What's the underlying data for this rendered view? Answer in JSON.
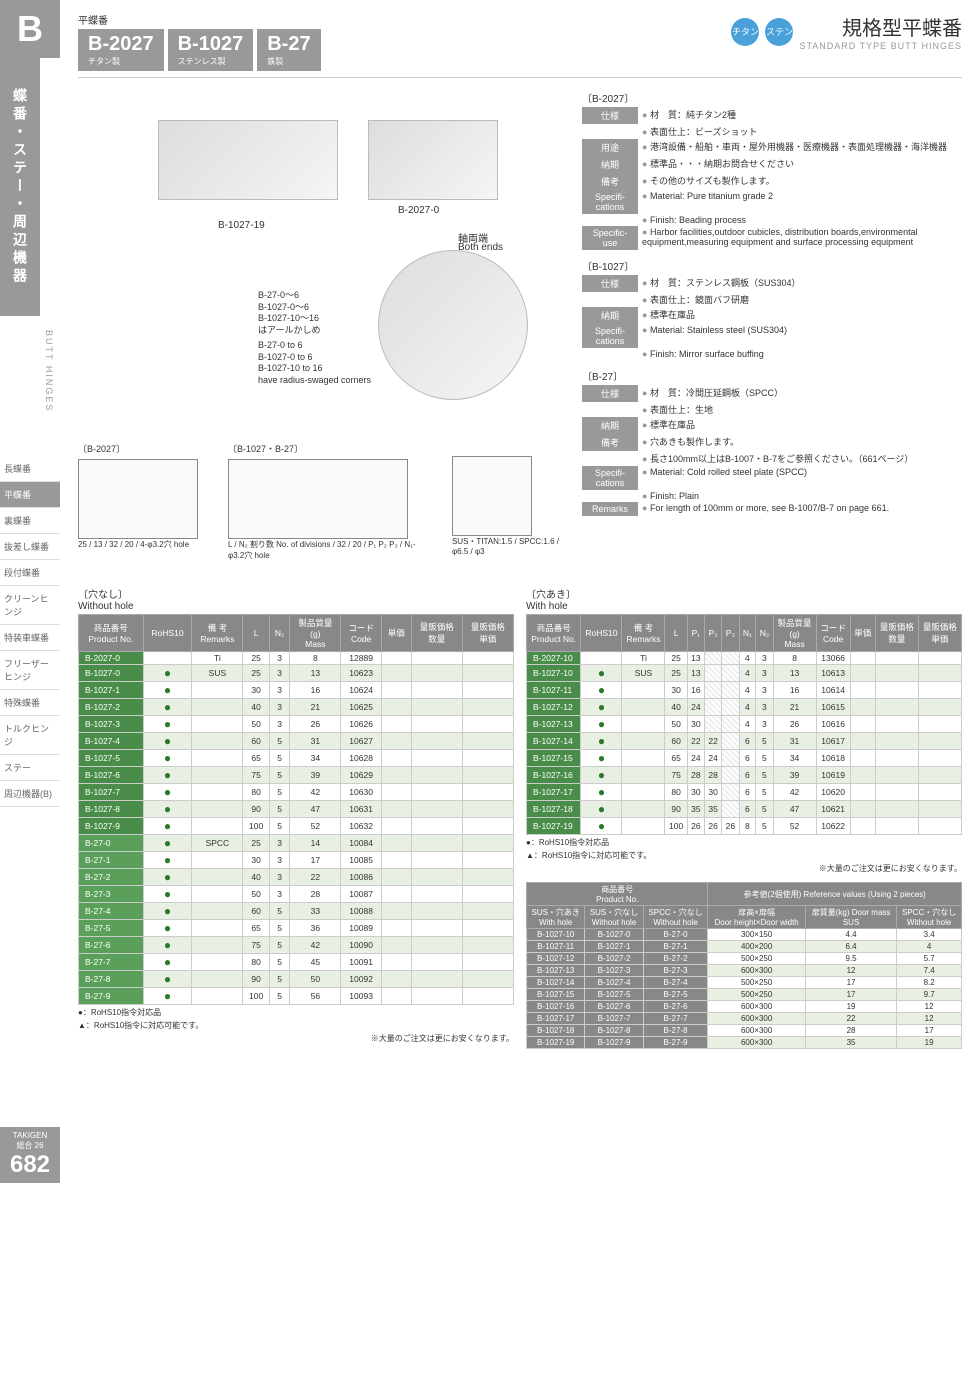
{
  "sidebar": {
    "letter": "B",
    "section_jp": "蝶番・ステー・周辺機器",
    "nav_en": "BUTT HINGES",
    "items": [
      "長蝶番",
      "平蝶番",
      "裏蝶番",
      "抜差し蝶番",
      "段付蝶番",
      "クリーンヒンジ",
      "特装車蝶番",
      "フリーザーヒンジ",
      "特殊蝶番",
      "トルクヒンジ",
      "ステー",
      "周辺機器(B)"
    ],
    "active_index": 1,
    "brand": "TAKIGEN",
    "catalog": "総合 26",
    "page": "682"
  },
  "header": {
    "small_title": "平蝶番",
    "codes": [
      {
        "code": "B-2027",
        "sub": "チタン製"
      },
      {
        "code": "B-1027",
        "sub": "ステンレス製"
      },
      {
        "code": "B-27",
        "sub": "鉄製"
      }
    ],
    "badges": [
      "チタン",
      "ステンレス"
    ],
    "title_jp": "規格型平蝶番",
    "title_en": "STANDARD TYPE BUTT HINGES"
  },
  "image_labels": {
    "img1": "B-1027-19",
    "img2": "B-2027-0",
    "both_ends_jp": "軸両端",
    "both_ends_en": "Both ends",
    "note_jp": "B-27-0～6\nB-1027-0～6\nB-1027-10～16\nはアールかしめ",
    "note_en": "B-27-0 to 6\nB-1027-0 to 6\nB-1027-10 to 16\nhave radius-swaged corners"
  },
  "diagrams": {
    "d1_label": "〔B-2027〕",
    "d2_label": "〔B-1027・B-27〕",
    "d1_dims": "25 / 13 / 32 / 20 / 4-φ3.2穴 hole",
    "d2_dims": "L / N₂ 割り数 No. of divisions / 32 / 20 / P₁ P₂ P₃ / N₁-φ3.2穴 hole",
    "d3_dims": "SUS・TITAN:1.5 / SPCC:1.6 / φ6.5 / φ3"
  },
  "specs": [
    {
      "header": "〔B-2027〕",
      "rows_jp": [
        {
          "label": "仕様",
          "text": "材　質：純チタン2種"
        },
        {
          "label": "",
          "text": "表面仕上：ビーズショット"
        },
        {
          "label": "用途",
          "text": "港湾設備・船舶・車両・屋外用機器・医療機器・表面処理機器・海洋機器"
        },
        {
          "label": "納期",
          "text": "標準品・・・納期お問合せください"
        },
        {
          "label": "備考",
          "text": "その他のサイズも製作します。"
        }
      ],
      "rows_en": [
        {
          "label": "Specifi-cations",
          "text": "Material: Pure titanium grade 2"
        },
        {
          "label": "",
          "text": "Finish: Beading process"
        },
        {
          "label": "Specific-use",
          "text": "Harbor facilities,outdoor cubicles, distribution boards,environmental equipment,measuring equipment and surface processing equipment"
        }
      ]
    },
    {
      "header": "〔B-1027〕",
      "rows_jp": [
        {
          "label": "仕様",
          "text": "材　質：ステンレス鋼板（SUS304）"
        },
        {
          "label": "",
          "text": "表面仕上：鏡面バフ研磨"
        },
        {
          "label": "納期",
          "text": "標準在庫品"
        }
      ],
      "rows_en": [
        {
          "label": "Specifi-cations",
          "text": "Material: Stainless steel (SUS304)"
        },
        {
          "label": "",
          "text": "Finish: Mirror surface buffing"
        }
      ]
    },
    {
      "header": "〔B-27〕",
      "rows_jp": [
        {
          "label": "仕様",
          "text": "材　質：冷間圧延鋼板（SPCC）"
        },
        {
          "label": "",
          "text": "表面仕上：生地"
        },
        {
          "label": "納期",
          "text": "標準在庫品"
        },
        {
          "label": "備考",
          "text": "穴あきも製作します。"
        },
        {
          "label": "",
          "text": "長さ100mm以上はB-1007・B-7をご参照ください。（661ページ）"
        }
      ],
      "rows_en": [
        {
          "label": "Specifi-cations",
          "text": "Material: Cold rolled steel plate (SPCC)"
        },
        {
          "label": "",
          "text": "Finish: Plain"
        },
        {
          "label": "Remarks",
          "text": "For length of 100mm or more, see B-1007/B-7 on page 661."
        }
      ]
    }
  ],
  "table_without": {
    "title_jp": "〔穴なし〕",
    "title_en": "Without hole",
    "headers": [
      "商品番号\nProduct No.",
      "RoHS10",
      "備 考\nRemarks",
      "L",
      "N₂",
      "製品質量\n(g)\nMass",
      "コード\nCode",
      "単価",
      "量販価格\n数量",
      "量販価格\n単価"
    ],
    "rows": [
      {
        "pn": "B-2027-0",
        "rohs": "",
        "rem": "Ti",
        "L": "25",
        "N": "3",
        "mass": "8",
        "code": "12889"
      },
      {
        "pn": "B-1027-0",
        "rohs": "●",
        "rem": "SUS",
        "L": "25",
        "N": "3",
        "mass": "13",
        "code": "10623"
      },
      {
        "pn": "B-1027-1",
        "rohs": "●",
        "rem": "",
        "L": "30",
        "N": "3",
        "mass": "16",
        "code": "10624"
      },
      {
        "pn": "B-1027-2",
        "rohs": "●",
        "rem": "",
        "L": "40",
        "N": "3",
        "mass": "21",
        "code": "10625"
      },
      {
        "pn": "B-1027-3",
        "rohs": "●",
        "rem": "",
        "L": "50",
        "N": "3",
        "mass": "26",
        "code": "10626"
      },
      {
        "pn": "B-1027-4",
        "rohs": "●",
        "rem": "",
        "L": "60",
        "N": "5",
        "mass": "31",
        "code": "10627"
      },
      {
        "pn": "B-1027-5",
        "rohs": "●",
        "rem": "",
        "L": "65",
        "N": "5",
        "mass": "34",
        "code": "10628"
      },
      {
        "pn": "B-1027-6",
        "rohs": "●",
        "rem": "",
        "L": "75",
        "N": "5",
        "mass": "39",
        "code": "10629"
      },
      {
        "pn": "B-1027-7",
        "rohs": "●",
        "rem": "",
        "L": "80",
        "N": "5",
        "mass": "42",
        "code": "10630"
      },
      {
        "pn": "B-1027-8",
        "rohs": "●",
        "rem": "",
        "L": "90",
        "N": "5",
        "mass": "47",
        "code": "10631"
      },
      {
        "pn": "B-1027-9",
        "rohs": "●",
        "rem": "",
        "L": "100",
        "N": "5",
        "mass": "52",
        "code": "10632"
      },
      {
        "pn": "B-27-0",
        "rohs": "●",
        "rem": "SPCC",
        "L": "25",
        "N": "3",
        "mass": "14",
        "code": "10084"
      },
      {
        "pn": "B-27-1",
        "rohs": "●",
        "rem": "",
        "L": "30",
        "N": "3",
        "mass": "17",
        "code": "10085"
      },
      {
        "pn": "B-27-2",
        "rohs": "●",
        "rem": "",
        "L": "40",
        "N": "3",
        "mass": "22",
        "code": "10086"
      },
      {
        "pn": "B-27-3",
        "rohs": "●",
        "rem": "",
        "L": "50",
        "N": "3",
        "mass": "28",
        "code": "10087"
      },
      {
        "pn": "B-27-4",
        "rohs": "●",
        "rem": "",
        "L": "60",
        "N": "5",
        "mass": "33",
        "code": "10088"
      },
      {
        "pn": "B-27-5",
        "rohs": "●",
        "rem": "",
        "L": "65",
        "N": "5",
        "mass": "36",
        "code": "10089"
      },
      {
        "pn": "B-27-6",
        "rohs": "●",
        "rem": "",
        "L": "75",
        "N": "5",
        "mass": "42",
        "code": "10090"
      },
      {
        "pn": "B-27-7",
        "rohs": "●",
        "rem": "",
        "L": "80",
        "N": "5",
        "mass": "45",
        "code": "10091"
      },
      {
        "pn": "B-27-8",
        "rohs": "●",
        "rem": "",
        "L": "90",
        "N": "5",
        "mass": "50",
        "code": "10092"
      },
      {
        "pn": "B-27-9",
        "rohs": "●",
        "rem": "",
        "L": "100",
        "N": "5",
        "mass": "56",
        "code": "10093"
      }
    ]
  },
  "table_with": {
    "title_jp": "〔穴あき〕",
    "title_en": "With hole",
    "headers": [
      "商品番号\nProduct No.",
      "RoHS10",
      "備 考\nRemarks",
      "L",
      "P₁",
      "P₂",
      "P₃",
      "N₁",
      "N₂",
      "製品質量\n(g)\nMass",
      "コード\nCode",
      "単価",
      "量販価格\n数量",
      "量販価格\n単価"
    ],
    "rows": [
      {
        "pn": "B-2027-10",
        "rohs": "",
        "rem": "Ti",
        "L": "25",
        "P1": "13",
        "P2": "",
        "P3": "",
        "N1": "4",
        "N2": "3",
        "mass": "8",
        "code": "13066"
      },
      {
        "pn": "B-1027-10",
        "rohs": "●",
        "rem": "SUS",
        "L": "25",
        "P1": "13",
        "P2": "",
        "P3": "",
        "N1": "4",
        "N2": "3",
        "mass": "13",
        "code": "10613"
      },
      {
        "pn": "B-1027-11",
        "rohs": "●",
        "rem": "",
        "L": "30",
        "P1": "16",
        "P2": "",
        "P3": "",
        "N1": "4",
        "N2": "3",
        "mass": "16",
        "code": "10614"
      },
      {
        "pn": "B-1027-12",
        "rohs": "●",
        "rem": "",
        "L": "40",
        "P1": "24",
        "P2": "",
        "P3": "",
        "N1": "4",
        "N2": "3",
        "mass": "21",
        "code": "10615"
      },
      {
        "pn": "B-1027-13",
        "rohs": "●",
        "rem": "",
        "L": "50",
        "P1": "30",
        "P2": "",
        "P3": "",
        "N1": "4",
        "N2": "3",
        "mass": "26",
        "code": "10616"
      },
      {
        "pn": "B-1027-14",
        "rohs": "●",
        "rem": "",
        "L": "60",
        "P1": "22",
        "P2": "22",
        "P3": "",
        "N1": "6",
        "N2": "5",
        "mass": "31",
        "code": "10617"
      },
      {
        "pn": "B-1027-15",
        "rohs": "●",
        "rem": "",
        "L": "65",
        "P1": "24",
        "P2": "24",
        "P3": "",
        "N1": "6",
        "N2": "5",
        "mass": "34",
        "code": "10618"
      },
      {
        "pn": "B-1027-16",
        "rohs": "●",
        "rem": "",
        "L": "75",
        "P1": "28",
        "P2": "28",
        "P3": "",
        "N1": "6",
        "N2": "5",
        "mass": "39",
        "code": "10619"
      },
      {
        "pn": "B-1027-17",
        "rohs": "●",
        "rem": "",
        "L": "80",
        "P1": "30",
        "P2": "30",
        "P3": "",
        "N1": "6",
        "N2": "5",
        "mass": "42",
        "code": "10620"
      },
      {
        "pn": "B-1027-18",
        "rohs": "●",
        "rem": "",
        "L": "90",
        "P1": "35",
        "P2": "35",
        "P3": "",
        "N1": "6",
        "N2": "5",
        "mass": "47",
        "code": "10621"
      },
      {
        "pn": "B-1027-19",
        "rohs": "●",
        "rem": "",
        "L": "100",
        "P1": "26",
        "P2": "26",
        "P3": "26",
        "N1": "8",
        "N2": "5",
        "mass": "52",
        "code": "10622"
      }
    ]
  },
  "footnotes": {
    "rohs": "●：RoHS10指令対応品",
    "rohs2": "▲：RoHS10指令に対応可能です。",
    "bulk": "※大量のご注文は更にお安くなります。"
  },
  "ref_table": {
    "header1": "商品番号\nProduct No.",
    "header2": "参考値(2個使用) Reference values (Using 2 pieces)",
    "sub_headers": [
      "SUS・穴あき\nWith hole",
      "SUS・穴なし\nWithout hole",
      "SPCC・穴なし\nWithout hole",
      "扉高×扉幅\nDoor height×Door width",
      "扉質量(kg) Door mass\nSUS",
      "SPCC・穴なし\nWithout hole"
    ],
    "rows": [
      [
        "B-1027-10",
        "B-1027-0",
        "B-27-0",
        "300×150",
        "4.4",
        "3.4"
      ],
      [
        "B-1027-11",
        "B-1027-1",
        "B-27-1",
        "400×200",
        "6.4",
        "4"
      ],
      [
        "B-1027-12",
        "B-1027-2",
        "B-27-2",
        "500×250",
        "9.5",
        "5.7"
      ],
      [
        "B-1027-13",
        "B-1027-3",
        "B-27-3",
        "600×300",
        "12",
        "7.4"
      ],
      [
        "B-1027-14",
        "B-1027-4",
        "B-27-4",
        "500×250",
        "17",
        "8.2"
      ],
      [
        "B-1027-15",
        "B-1027-5",
        "B-27-5",
        "500×250",
        "17",
        "9.7"
      ],
      [
        "B-1027-16",
        "B-1027-6",
        "B-27-6",
        "600×300",
        "19",
        "12"
      ],
      [
        "B-1027-17",
        "B-1027-7",
        "B-27-7",
        "600×300",
        "22",
        "12"
      ],
      [
        "B-1027-18",
        "B-1027-8",
        "B-27-8",
        "600×300",
        "28",
        "17"
      ],
      [
        "B-1027-19",
        "B-1027-9",
        "B-27-9",
        "600×300",
        "35",
        "19"
      ]
    ]
  },
  "colors": {
    "gray": "#97999b",
    "green_dark": "#4a8c4a",
    "green_alt": "#e8f0e4",
    "badge_blue": "#4aa0d8"
  }
}
